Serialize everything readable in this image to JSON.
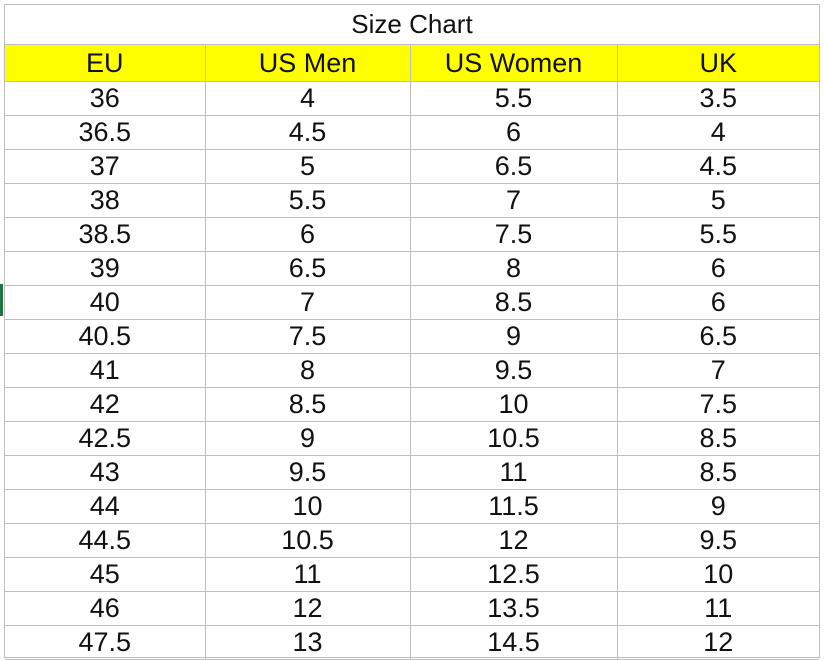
{
  "title": "Size Chart",
  "headers": [
    "EU",
    "US Men",
    "US Women",
    "UK"
  ],
  "rows": [
    [
      "36",
      "4",
      "5.5",
      "3.5"
    ],
    [
      "36.5",
      "4.5",
      "6",
      "4"
    ],
    [
      "37",
      "5",
      "6.5",
      "4.5"
    ],
    [
      "38",
      "5.5",
      "7",
      "5"
    ],
    [
      "38.5",
      "6",
      "7.5",
      "5.5"
    ],
    [
      "39",
      "6.5",
      "8",
      "6"
    ],
    [
      "40",
      "7",
      "8.5",
      "6"
    ],
    [
      "40.5",
      "7.5",
      "9",
      "6.5"
    ],
    [
      "41",
      "8",
      "9.5",
      "7"
    ],
    [
      "42",
      "8.5",
      "10",
      "7.5"
    ],
    [
      "42.5",
      "9",
      "10.5",
      "8.5"
    ],
    [
      "43",
      "9.5",
      "11",
      "8.5"
    ],
    [
      "44",
      "10",
      "11.5",
      "9"
    ],
    [
      "44.5",
      "10.5",
      "12",
      "9.5"
    ],
    [
      "45",
      "11",
      "12.5",
      "10"
    ],
    [
      "46",
      "12",
      "13.5",
      "11"
    ],
    [
      "47.5",
      "13",
      "14.5",
      "12"
    ]
  ],
  "colors": {
    "header_fill": "#ffff00",
    "grid_line": "#bdbdbd",
    "selection_marker": "#217346"
  }
}
